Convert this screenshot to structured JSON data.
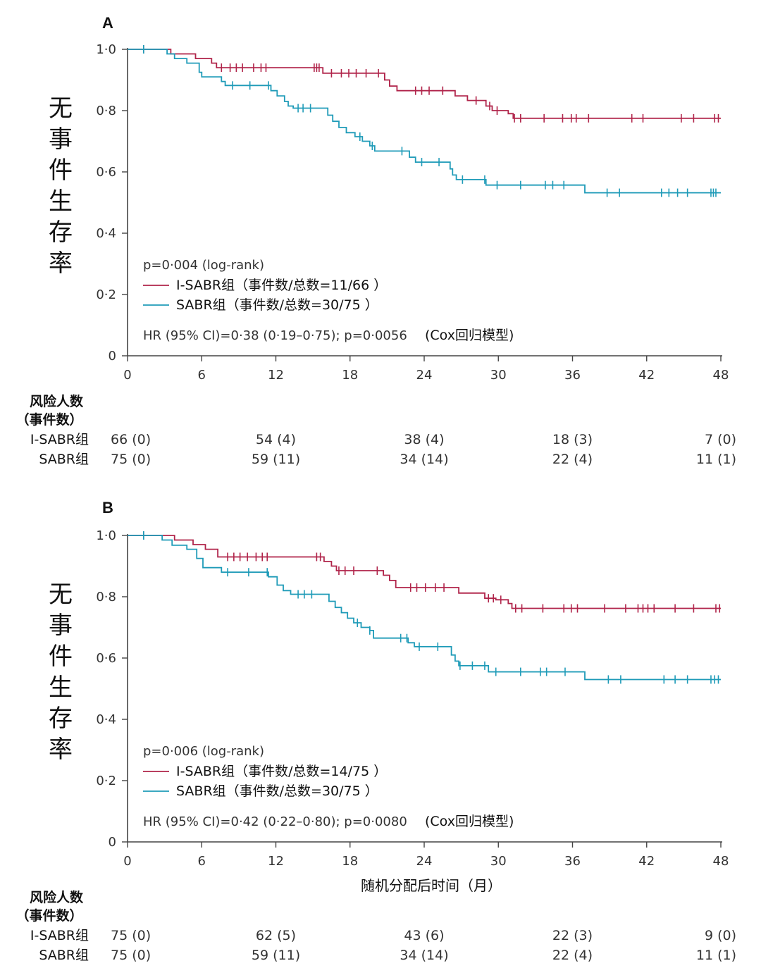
{
  "colors": {
    "isabr": "#b0244a",
    "sabr": "#1f9bb8",
    "axis": "#444444"
  },
  "chart_data": [
    {
      "panel": "A",
      "type": "line",
      "chart_subtype": "kaplan-meier",
      "ylabel": "无事件生存率",
      "xlabel": "",
      "xlim": [
        0,
        48
      ],
      "ylim": [
        0,
        1
      ],
      "xticks": [
        "0",
        "6",
        "12",
        "18",
        "24",
        "30",
        "36",
        "42",
        "48"
      ],
      "yticks": [
        "0",
        "0·2",
        "0·4",
        "0·6",
        "0·8",
        "1·0"
      ],
      "pvalue_text": "p=0·004 (log-rank)",
      "hr_text": "HR (95% CI)=0·38 (0·19–0·75); p=0·0056",
      "cox_text": "(Cox回归模型)",
      "legend": [
        "I-SABR组（事件数/总数=11/66 ）",
        "SABR组（事件数/总数=30/75 ）"
      ],
      "series": [
        {
          "name": "I-SABR组",
          "color_key": "isabr",
          "steps": [
            [
              0,
              1.0
            ],
            [
              3.5,
              0.985
            ],
            [
              5.5,
              0.97
            ],
            [
              6.8,
              0.955
            ],
            [
              7.2,
              0.94
            ],
            [
              15.5,
              0.94
            ],
            [
              15.8,
              0.922
            ],
            [
              20.5,
              0.922
            ],
            [
              20.8,
              0.9
            ],
            [
              21.2,
              0.88
            ],
            [
              21.8,
              0.865
            ],
            [
              26,
              0.865
            ],
            [
              26.5,
              0.848
            ],
            [
              27.5,
              0.833
            ],
            [
              29,
              0.815
            ],
            [
              29.5,
              0.8
            ],
            [
              30.8,
              0.79
            ],
            [
              31.2,
              0.775
            ],
            [
              48,
              0.775
            ]
          ],
          "censors": [
            1.3,
            7.6,
            8.3,
            8.8,
            9.3,
            10.2,
            10.8,
            11.2,
            15.1,
            15.3,
            15.5,
            16.5,
            17.3,
            17.9,
            18.5,
            19.3,
            20.3,
            23.3,
            23.8,
            24.4,
            25.5,
            28.2,
            29.3,
            29.9,
            31.3,
            31.8,
            33.7,
            35.2,
            35.9,
            36.3,
            37.3,
            40.8,
            41.7,
            44.8,
            45.8,
            47.5,
            47.8
          ]
        },
        {
          "name": "SABR组",
          "color_key": "sabr",
          "steps": [
            [
              0,
              1.0
            ],
            [
              3.2,
              0.985
            ],
            [
              3.8,
              0.97
            ],
            [
              4.8,
              0.955
            ],
            [
              5.8,
              0.925
            ],
            [
              6,
              0.91
            ],
            [
              7.6,
              0.895
            ],
            [
              7.9,
              0.882
            ],
            [
              11,
              0.882
            ],
            [
              11.6,
              0.865
            ],
            [
              12.1,
              0.848
            ],
            [
              12.7,
              0.83
            ],
            [
              13,
              0.815
            ],
            [
              13.4,
              0.808
            ],
            [
              15.9,
              0.808
            ],
            [
              16.2,
              0.785
            ],
            [
              16.6,
              0.765
            ],
            [
              17.1,
              0.745
            ],
            [
              17.7,
              0.728
            ],
            [
              18.4,
              0.715
            ],
            [
              19,
              0.7
            ],
            [
              19.6,
              0.685
            ],
            [
              20,
              0.668
            ],
            [
              22.5,
              0.668
            ],
            [
              22.8,
              0.648
            ],
            [
              23.3,
              0.632
            ],
            [
              25.9,
              0.632
            ],
            [
              26.1,
              0.61
            ],
            [
              26.3,
              0.59
            ],
            [
              26.6,
              0.575
            ],
            [
              28.6,
              0.575
            ],
            [
              29,
              0.557
            ],
            [
              36.8,
              0.557
            ],
            [
              37,
              0.532
            ],
            [
              48,
              0.532
            ]
          ],
          "censors": [
            1.3,
            8.5,
            9.9,
            11.4,
            13.8,
            14.2,
            14.8,
            18.8,
            19.8,
            22.2,
            23.8,
            25.2,
            27.1,
            28.9,
            29.9,
            31.8,
            33.8,
            34.4,
            35.3,
            38.8,
            39.8,
            43.2,
            43.8,
            44.5,
            45.3,
            47.2,
            47.4,
            47.6
          ]
        }
      ],
      "risk_table": {
        "header_line1": "风险人数",
        "header_line2": "（事件数）",
        "rows": [
          {
            "label": "I-SABR组",
            "values": [
              "66 (0)",
              "54 (4)",
              "38 (4)",
              "18 (3)",
              "7 (0)"
            ]
          },
          {
            "label": "SABR组",
            "values": [
              "75 (0)",
              "59 (11)",
              "34 (14)",
              "22 (4)",
              "11 (1)"
            ]
          }
        ]
      }
    },
    {
      "panel": "B",
      "type": "line",
      "chart_subtype": "kaplan-meier",
      "ylabel": "无事件生存率",
      "xlabel": "随机分配后时间（月）",
      "xlim": [
        0,
        48
      ],
      "ylim": [
        0,
        1
      ],
      "xticks": [
        "0",
        "6",
        "12",
        "18",
        "24",
        "30",
        "36",
        "42",
        "48"
      ],
      "yticks": [
        "0",
        "0·2",
        "0·4",
        "0·6",
        "0·8",
        "1·0"
      ],
      "pvalue_text": "p=0·006 (log-rank)",
      "hr_text": "HR (95% CI)=0·42 (0·22–0·80); p=0·0080",
      "cox_text": "(Cox回归模型)",
      "legend": [
        "I-SABR组（事件数/总数=14/75 ）",
        "SABR组（事件数/总数=30/75 ）"
      ],
      "series": [
        {
          "name": "I-SABR组",
          "color_key": "isabr",
          "steps": [
            [
              0,
              1.0
            ],
            [
              3.8,
              0.985
            ],
            [
              5.3,
              0.97
            ],
            [
              6.3,
              0.955
            ],
            [
              7.3,
              0.93
            ],
            [
              15.5,
              0.93
            ],
            [
              15.9,
              0.915
            ],
            [
              16.5,
              0.9
            ],
            [
              16.9,
              0.885
            ],
            [
              20.3,
              0.885
            ],
            [
              20.7,
              0.87
            ],
            [
              21.2,
              0.853
            ],
            [
              21.7,
              0.83
            ],
            [
              26.3,
              0.83
            ],
            [
              26.8,
              0.812
            ],
            [
              28.5,
              0.812
            ],
            [
              28.9,
              0.795
            ],
            [
              29.8,
              0.79
            ],
            [
              30.8,
              0.778
            ],
            [
              31.1,
              0.762
            ],
            [
              48,
              0.762
            ]
          ],
          "censors": [
            1.3,
            8.1,
            8.6,
            9.1,
            9.7,
            10.4,
            10.9,
            11.3,
            15.3,
            15.6,
            17.1,
            17.6,
            18.3,
            20.2,
            22.9,
            23.4,
            24.1,
            24.9,
            25.6,
            29.2,
            29.6,
            30.2,
            31.4,
            31.9,
            33.6,
            35.3,
            35.9,
            36.4,
            38.6,
            40.3,
            41.3,
            41.7,
            42.1,
            42.6,
            44.3,
            45.8,
            47.6,
            47.9
          ]
        },
        {
          "name": "SABR组",
          "color_key": "sabr",
          "steps": [
            [
              0,
              1.0
            ],
            [
              2.8,
              0.985
            ],
            [
              3.6,
              0.968
            ],
            [
              4.8,
              0.955
            ],
            [
              5.6,
              0.925
            ],
            [
              6.1,
              0.895
            ],
            [
              7.6,
              0.88
            ],
            [
              10.8,
              0.88
            ],
            [
              11.4,
              0.865
            ],
            [
              12.1,
              0.838
            ],
            [
              12.6,
              0.82
            ],
            [
              13.2,
              0.808
            ],
            [
              16,
              0.808
            ],
            [
              16.3,
              0.785
            ],
            [
              16.8,
              0.765
            ],
            [
              17.3,
              0.748
            ],
            [
              17.8,
              0.73
            ],
            [
              18.3,
              0.715
            ],
            [
              18.9,
              0.7
            ],
            [
              19.6,
              0.69
            ],
            [
              19.9,
              0.665
            ],
            [
              22.4,
              0.665
            ],
            [
              22.7,
              0.65
            ],
            [
              23.2,
              0.637
            ],
            [
              25.9,
              0.637
            ],
            [
              26.2,
              0.61
            ],
            [
              26.5,
              0.59
            ],
            [
              26.8,
              0.575
            ],
            [
              28.9,
              0.575
            ],
            [
              29.2,
              0.555
            ],
            [
              36.8,
              0.555
            ],
            [
              37,
              0.53
            ],
            [
              48,
              0.53
            ]
          ],
          "censors": [
            1.3,
            8.1,
            9.8,
            11.3,
            13.8,
            14.3,
            14.9,
            18.6,
            19.6,
            22.1,
            22.6,
            23.6,
            25.1,
            26.9,
            27.9,
            28.9,
            29.8,
            31.8,
            33.4,
            33.9,
            35.4,
            38.9,
            39.9,
            43.4,
            44.3,
            45.3,
            47.2,
            47.5,
            47.8
          ]
        }
      ],
      "risk_table": {
        "header_line1": "风险人数",
        "header_line2": "（事件数）",
        "rows": [
          {
            "label": "I-SABR组",
            "values": [
              "75 (0)",
              "62 (5)",
              "43 (6)",
              "22 (3)",
              "9 (0)"
            ]
          },
          {
            "label": "SABR组",
            "values": [
              "75 (0)",
              "59 (11)",
              "34 (14)",
              "22 (4)",
              "11 (1)"
            ]
          }
        ]
      }
    }
  ]
}
